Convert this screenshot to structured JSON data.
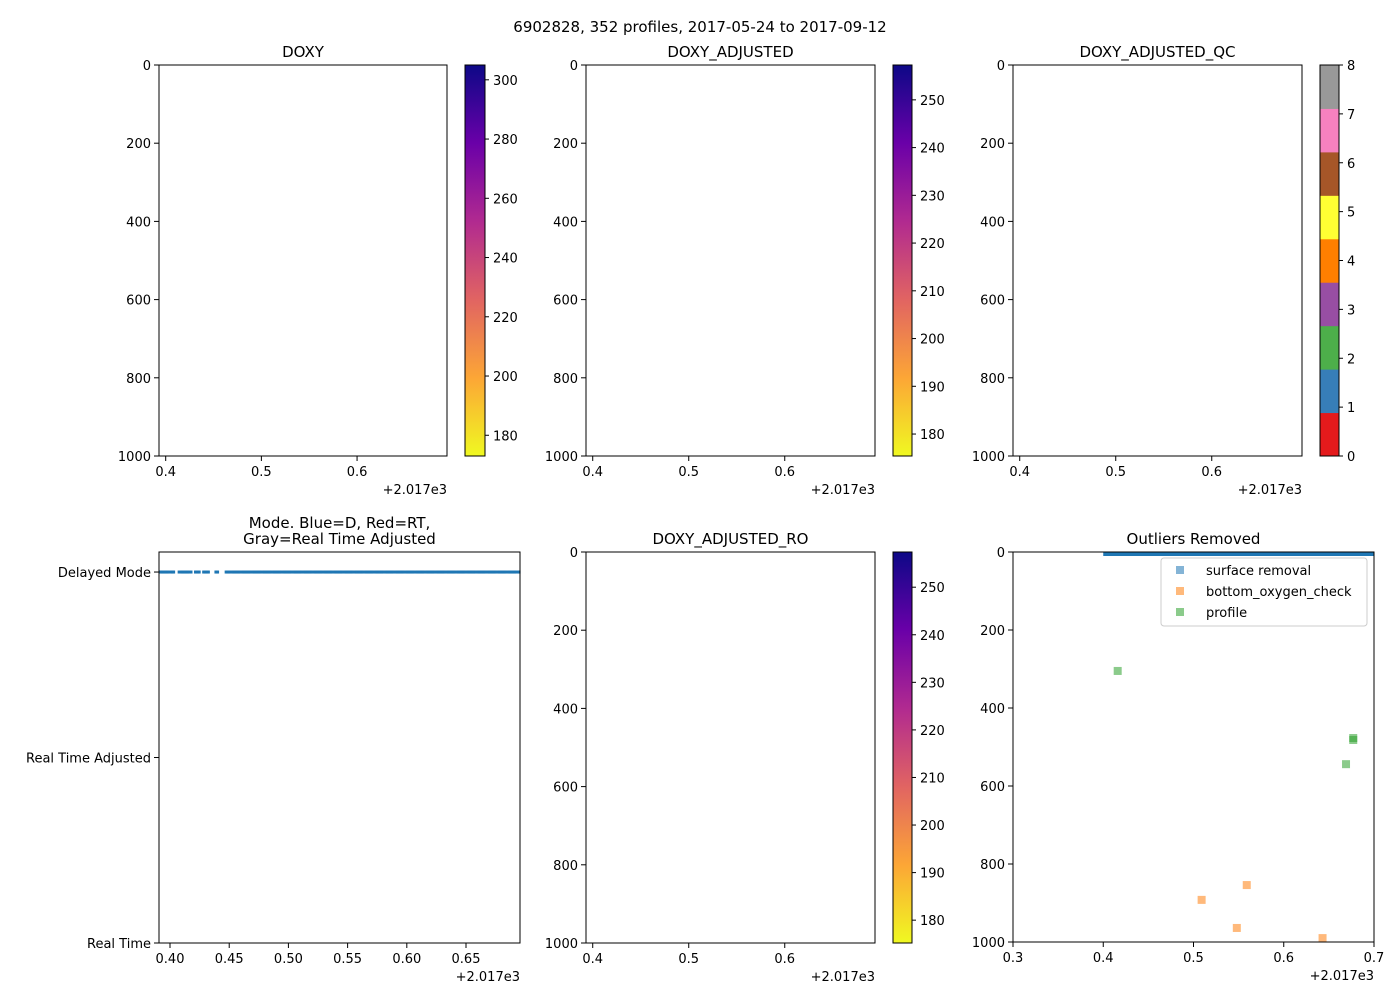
{
  "figure_title": "6902828, 352 profiles, 2017-05-24 to 2017-09-12",
  "chart_data": [
    {
      "type": "heatmap",
      "title": [
        "DOXY"
      ],
      "xlim": [
        0.393,
        0.694
      ],
      "ylim": [
        0,
        1000
      ],
      "xticks": {
        "values": [
          0.4,
          0.5,
          0.6
        ],
        "labels": [
          "0.4",
          "0.5",
          "0.6"
        ]
      },
      "yticks": {
        "values": [
          0,
          200,
          400,
          600,
          800,
          1000
        ],
        "labels": [
          "0",
          "200",
          "400",
          "600",
          "800",
          "1000"
        ]
      },
      "offset_text": "+2.017e3",
      "colorbar": {
        "kind": "continuous",
        "cmap": [
          "#f0f921",
          "#fca636",
          "#e16462",
          "#b12a90",
          "#6a00a8",
          "#0d0887"
        ],
        "range": [
          173,
          305
        ],
        "ticks": [
          180,
          200,
          220,
          240,
          260,
          280,
          300
        ],
        "labels": [
          "180",
          "200",
          "220",
          "240",
          "260",
          "280",
          "300"
        ]
      }
    },
    {
      "type": "heatmap",
      "title": [
        "DOXY_ADJUSTED"
      ],
      "xlim": [
        0.393,
        0.694
      ],
      "ylim": [
        0,
        1000
      ],
      "xticks": {
        "values": [
          0.4,
          0.5,
          0.6
        ],
        "labels": [
          "0.4",
          "0.5",
          "0.6"
        ]
      },
      "yticks": {
        "values": [
          0,
          200,
          400,
          600,
          800,
          1000
        ],
        "labels": [
          "0",
          "200",
          "400",
          "600",
          "800",
          "1000"
        ]
      },
      "offset_text": "+2.017e3",
      "colorbar": {
        "kind": "continuous",
        "cmap": [
          "#f0f921",
          "#fca636",
          "#e16462",
          "#b12a90",
          "#6a00a8",
          "#0d0887"
        ],
        "range": [
          175.4,
          257.3
        ],
        "ticks": [
          180,
          190,
          200,
          210,
          220,
          230,
          240,
          250
        ],
        "labels": [
          "180",
          "190",
          "200",
          "210",
          "220",
          "230",
          "240",
          "250"
        ]
      }
    },
    {
      "type": "heatmap",
      "title": [
        "DOXY_ADJUSTED_QC"
      ],
      "xlim": [
        0.393,
        0.694
      ],
      "ylim": [
        0,
        1000
      ],
      "xticks": {
        "values": [
          0.4,
          0.5,
          0.6
        ],
        "labels": [
          "0.4",
          "0.5",
          "0.6"
        ]
      },
      "yticks": {
        "values": [
          0,
          200,
          400,
          600,
          800,
          1000
        ],
        "labels": [
          "0",
          "200",
          "400",
          "600",
          "800",
          "1000"
        ]
      },
      "offset_text": "+2.017e3",
      "colorbar": {
        "kind": "discrete",
        "range": [
          0,
          8
        ],
        "colors": [
          "#e41a1c",
          "#377eb8",
          "#4daf4a",
          "#984ea3",
          "#ff7f00",
          "#ffff33",
          "#a65628",
          "#f781bf",
          "#999999"
        ],
        "ticks": [
          0,
          1,
          2,
          3,
          4,
          5,
          6,
          7,
          8
        ],
        "labels": [
          "0",
          "1",
          "2",
          "3",
          "4",
          "5",
          "6",
          "7",
          "8"
        ]
      }
    },
    {
      "type": "scatter",
      "title": [
        "Mode. Blue=D, Red=RT,",
        "Gray=Real Time Adjusted"
      ],
      "xlim": [
        0.3907,
        0.6956
      ],
      "ylim": [
        2.108,
        0
      ],
      "xticks": {
        "values": [
          0.4,
          0.45,
          0.5,
          0.55,
          0.6,
          0.65
        ],
        "labels": [
          "0.40",
          "0.45",
          "0.50",
          "0.55",
          "0.60",
          "0.65"
        ]
      },
      "yticks": {
        "values": [
          2,
          1,
          0
        ],
        "labels": [
          "Delayed Mode",
          "Real Time Adjusted",
          "Real Time"
        ]
      },
      "offset_text": "+2.017e3",
      "mode_series": {
        "name": "Delayed Mode",
        "y": 2,
        "color": "#1f77b4",
        "x_start": 0.392,
        "x_end": 0.695,
        "n_profiles": 352,
        "gaps": [
          [
            0.404,
            0.407
          ],
          [
            0.418,
            0.421
          ],
          [
            0.425,
            0.428
          ],
          [
            0.433,
            0.438
          ],
          [
            0.441,
            0.447
          ]
        ]
      }
    },
    {
      "type": "heatmap",
      "title": [
        "DOXY_ADJUSTED_RO"
      ],
      "xlim": [
        0.393,
        0.694
      ],
      "ylim": [
        0,
        1000
      ],
      "xticks": {
        "values": [
          0.4,
          0.5,
          0.6
        ],
        "labels": [
          "0.4",
          "0.5",
          "0.6"
        ]
      },
      "yticks": {
        "values": [
          0,
          200,
          400,
          600,
          800,
          1000
        ],
        "labels": [
          "0",
          "200",
          "400",
          "600",
          "800",
          "1000"
        ]
      },
      "offset_text": "+2.017e3",
      "colorbar": {
        "kind": "continuous",
        "cmap": [
          "#f0f921",
          "#fca636",
          "#e16462",
          "#b12a90",
          "#6a00a8",
          "#0d0887"
        ],
        "range": [
          175.2,
          257.4
        ],
        "ticks": [
          180,
          190,
          200,
          210,
          220,
          230,
          240,
          250
        ],
        "labels": [
          "180",
          "190",
          "200",
          "210",
          "220",
          "230",
          "240",
          "250"
        ]
      }
    },
    {
      "type": "scatter",
      "title": [
        "Outliers Removed"
      ],
      "xlim": [
        0.3,
        0.7
      ],
      "ylim": [
        0,
        1000
      ],
      "xticks": {
        "values": [
          0.3,
          0.4,
          0.5,
          0.6,
          0.7
        ],
        "labels": [
          "0.3",
          "0.4",
          "0.5",
          "0.6",
          "0.7"
        ]
      },
      "yticks": {
        "values": [
          0,
          200,
          400,
          600,
          800,
          1000
        ],
        "labels": [
          "0",
          "200",
          "400",
          "600",
          "800",
          "1000"
        ]
      },
      "offset_text": "+2.017e3",
      "legend": "top-right",
      "series": [
        {
          "name": "surface removal",
          "color": "#1f77b4",
          "band": {
            "x": [
              0.4,
              0.7
            ],
            "y": [
              0,
              10
            ]
          },
          "points": []
        },
        {
          "name": "bottom_oxygen_check",
          "color": "#ff7f0e",
          "band": null,
          "points": [
            [
              0.509,
              892
            ],
            [
              0.559,
              854
            ],
            [
              0.548,
              964
            ],
            [
              0.643,
              990
            ]
          ]
        },
        {
          "name": "profile",
          "color": "#2ca02c",
          "band": null,
          "points": [
            [
              0.416,
              305
            ],
            [
              0.677,
              477
            ],
            [
              0.677,
              482
            ],
            [
              0.669,
              544
            ]
          ]
        }
      ]
    }
  ]
}
